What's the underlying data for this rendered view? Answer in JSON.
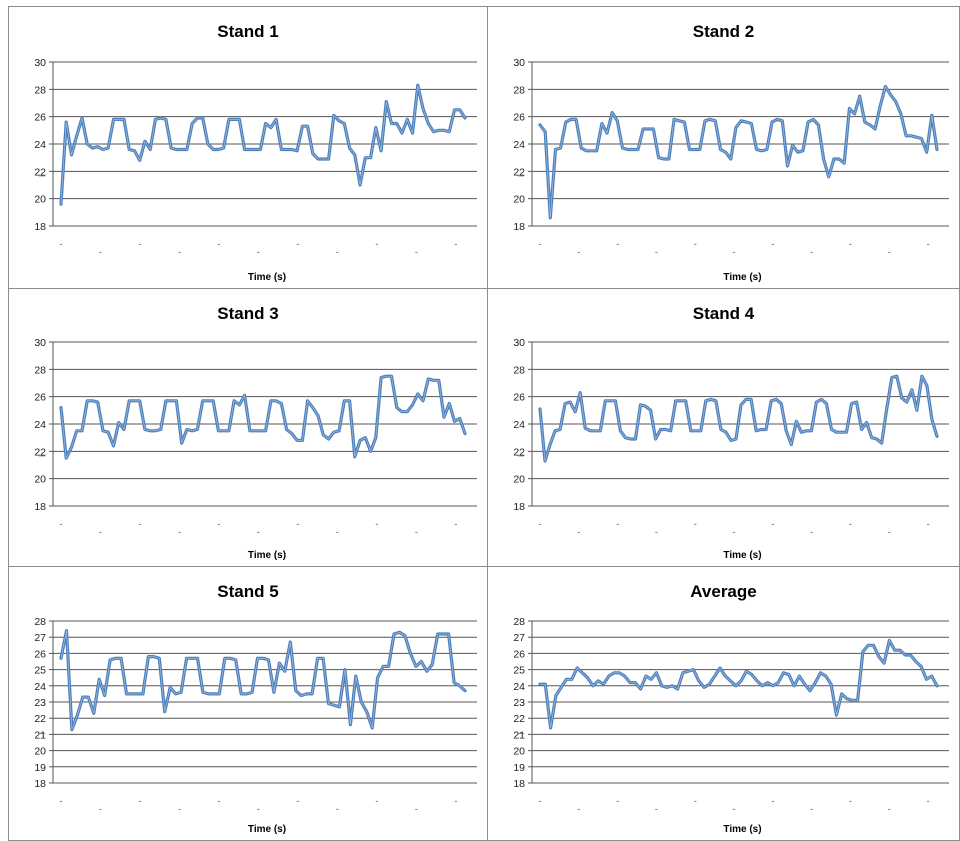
{
  "chart_data": [
    {
      "type": "line",
      "title": "Stand 1",
      "xlabel": "Time (s)",
      "ylabel": "",
      "ylim": [
        18,
        30
      ],
      "yticks": [
        18,
        20,
        22,
        24,
        26,
        28,
        30
      ],
      "grid": true,
      "legend": "none",
      "series_color": "#4f81bd",
      "x_tick_labels": [
        "-",
        "-",
        "-",
        "-",
        "-",
        "-",
        "-",
        "-",
        "-",
        "-",
        "-",
        "-",
        "-",
        "-",
        "-",
        "-",
        "-",
        "-",
        "-",
        "-",
        "-",
        "-",
        "-",
        "-",
        "-",
        "-",
        "-",
        "-",
        "-",
        "-",
        "-",
        "-",
        "-",
        "-",
        "-",
        "-",
        "-",
        "-",
        "-",
        "-",
        "-",
        "-",
        "-",
        "-",
        "-",
        "-",
        "-",
        "-",
        "-",
        "-",
        "-",
        "-",
        "-",
        "-",
        "-",
        "-",
        "-",
        "-",
        "-",
        "-",
        "-",
        "-",
        "-"
      ],
      "series": [
        {
          "values": [
            19.6,
            25.6,
            23.2,
            24.6,
            25.9,
            24,
            23.7,
            23.8,
            23.6,
            23.7,
            25.8,
            25.8,
            25.8,
            23.6,
            23.5,
            22.8,
            24.2,
            23.6,
            25.8,
            25.9,
            25.8,
            23.7,
            23.6,
            23.6,
            23.6,
            25.5,
            25.9,
            25.9,
            24,
            23.6,
            23.6,
            23.7,
            25.8,
            25.8,
            25.8,
            23.6,
            23.6,
            23.6,
            23.6,
            25.5,
            25.2,
            25.8,
            23.6,
            23.6,
            23.6,
            23.5,
            25.3,
            25.3,
            23.3,
            22.9,
            22.9,
            22.9,
            26.1,
            25.7,
            25.5,
            23.7,
            23.2,
            21,
            23,
            23,
            25.2,
            23.5,
            27.1,
            25.5,
            25.5,
            24.8,
            25.8,
            24.8,
            28.3,
            26.6,
            25.5,
            24.9,
            25,
            25,
            24.9,
            26.5,
            26.5,
            25.9
          ]
        }
      ]
    },
    {
      "type": "line",
      "title": "Stand 2",
      "xlabel": "Time (s)",
      "ylabel": "",
      "ylim": [
        18,
        30
      ],
      "yticks": [
        18,
        20,
        22,
        24,
        26,
        28,
        30
      ],
      "grid": true,
      "legend": "none",
      "series_color": "#4f81bd",
      "x_tick_labels": [
        "-",
        "-",
        "-",
        "-",
        "-",
        "-",
        "-",
        "-",
        "-",
        "-",
        "-",
        "-",
        "-",
        "-",
        "-",
        "-",
        "-",
        "-",
        "-",
        "-",
        "-",
        "-",
        "-",
        "-",
        "-",
        "-",
        "-",
        "-",
        "-",
        "-",
        "-",
        "-",
        "-",
        "-",
        "-",
        "-",
        "-",
        "-",
        "-",
        "-",
        "-",
        "-",
        "-",
        "-",
        "-",
        "-",
        "-",
        "-",
        "-",
        "-",
        "-",
        "-",
        "-",
        "-",
        "-",
        "-",
        "-",
        "-",
        "-",
        "-",
        "-",
        "-",
        "-"
      ],
      "series": [
        {
          "values": [
            25.4,
            24.9,
            18.6,
            23.6,
            23.7,
            25.6,
            25.8,
            25.8,
            23.7,
            23.5,
            23.5,
            23.5,
            25.5,
            24.8,
            26.3,
            25.7,
            23.7,
            23.6,
            23.6,
            23.6,
            25.1,
            25.1,
            25.1,
            23,
            22.9,
            22.9,
            25.8,
            25.7,
            25.6,
            23.6,
            23.6,
            23.6,
            25.7,
            25.8,
            25.7,
            23.6,
            23.4,
            22.9,
            25.2,
            25.7,
            25.6,
            25.5,
            23.6,
            23.5,
            23.6,
            25.6,
            25.8,
            25.7,
            22.4,
            23.9,
            23.4,
            23.5,
            25.6,
            25.8,
            25.4,
            22.9,
            21.6,
            22.9,
            22.9,
            22.6,
            26.6,
            26.2,
            27.5,
            25.6,
            25.4,
            25.1,
            26.8,
            28.2,
            27.6,
            27.1,
            26.2,
            24.6,
            24.6,
            24.5,
            24.4,
            23.4,
            26.1,
            23.6
          ]
        }
      ]
    },
    {
      "type": "line",
      "title": "Stand 3",
      "xlabel": "Time (s)",
      "ylabel": "",
      "ylim": [
        18,
        30
      ],
      "yticks": [
        18,
        20,
        22,
        24,
        26,
        28,
        30
      ],
      "grid": true,
      "legend": "none",
      "series_color": "#4f81bd",
      "x_tick_labels": [
        "-",
        "-",
        "-",
        "-",
        "-",
        "-",
        "-",
        "-",
        "-",
        "-",
        "-",
        "-",
        "-",
        "-",
        "-",
        "-",
        "-",
        "-",
        "-",
        "-",
        "-",
        "-",
        "-",
        "-",
        "-",
        "-",
        "-",
        "-",
        "-",
        "-",
        "-",
        "-",
        "-",
        "-",
        "-",
        "-",
        "-",
        "-",
        "-",
        "-",
        "-",
        "-",
        "-",
        "-",
        "-",
        "-",
        "-",
        "-",
        "-",
        "-",
        "-",
        "-",
        "-",
        "-",
        "-",
        "-",
        "-",
        "-",
        "-",
        "-",
        "-",
        "-",
        "-"
      ],
      "series": [
        {
          "values": [
            25.2,
            21.5,
            22.3,
            23.5,
            23.5,
            25.7,
            25.7,
            25.6,
            23.5,
            23.4,
            22.4,
            24.1,
            23.6,
            25.7,
            25.7,
            25.7,
            23.6,
            23.5,
            23.5,
            23.6,
            25.7,
            25.7,
            25.7,
            22.6,
            23.6,
            23.5,
            23.6,
            25.7,
            25.7,
            25.7,
            23.5,
            23.5,
            23.5,
            25.7,
            25.4,
            26.1,
            23.5,
            23.5,
            23.5,
            23.5,
            25.7,
            25.7,
            25.5,
            23.6,
            23.3,
            22.8,
            22.8,
            25.7,
            25.2,
            24.6,
            23.2,
            22.9,
            23.4,
            23.5,
            25.7,
            25.7,
            21.6,
            22.8,
            23,
            22,
            23,
            27.4,
            27.5,
            27.5,
            25.2,
            24.9,
            24.9,
            25.4,
            26.2,
            25.7,
            27.3,
            27.2,
            27.2,
            24.5,
            25.5,
            24.2,
            24.4,
            23.3
          ]
        }
      ]
    },
    {
      "type": "line",
      "title": "Stand 4",
      "xlabel": "Time (s)",
      "ylabel": "",
      "ylim": [
        18,
        30
      ],
      "yticks": [
        18,
        20,
        22,
        24,
        26,
        28,
        30
      ],
      "grid": true,
      "legend": "none",
      "series_color": "#4f81bd",
      "x_tick_labels": [
        "-",
        "-",
        "-",
        "-",
        "-",
        "-",
        "-",
        "-",
        "-",
        "-",
        "-",
        "-",
        "-",
        "-",
        "-",
        "-",
        "-",
        "-",
        "-",
        "-",
        "-",
        "-",
        "-",
        "-",
        "-",
        "-",
        "-",
        "-",
        "-",
        "-",
        "-",
        "-",
        "-",
        "-",
        "-",
        "-",
        "-",
        "-",
        "-",
        "-",
        "-",
        "-",
        "-",
        "-",
        "-",
        "-",
        "-",
        "-",
        "-",
        "-",
        "-",
        "-",
        "-",
        "-",
        "-",
        "-",
        "-",
        "-",
        "-",
        "-",
        "-",
        "-",
        "-"
      ],
      "series": [
        {
          "values": [
            25.1,
            21.3,
            22.5,
            23.5,
            23.6,
            25.5,
            25.6,
            24.9,
            26.3,
            23.7,
            23.5,
            23.5,
            23.5,
            25.7,
            25.7,
            25.7,
            23.5,
            23,
            22.9,
            22.9,
            25.4,
            25.3,
            25,
            22.9,
            23.6,
            23.6,
            23.5,
            25.7,
            25.7,
            25.7,
            23.5,
            23.5,
            23.5,
            25.7,
            25.8,
            25.7,
            23.6,
            23.4,
            22.8,
            22.9,
            25.4,
            25.8,
            25.8,
            23.5,
            23.6,
            23.6,
            25.7,
            25.8,
            25.5,
            23.5,
            22.5,
            24.2,
            23.4,
            23.5,
            23.5,
            25.6,
            25.8,
            25.5,
            23.6,
            23.4,
            23.4,
            23.4,
            25.5,
            25.6,
            23.6,
            24.1,
            23,
            22.9,
            22.6,
            25.1,
            27.4,
            27.5,
            25.9,
            25.6,
            26.5,
            25,
            27.5,
            26.8,
            24.3,
            23.1
          ]
        }
      ]
    },
    {
      "type": "line",
      "title": "Stand 5",
      "xlabel": "Time (s)",
      "ylabel": "",
      "ylim": [
        18,
        28
      ],
      "yticks": [
        18,
        19,
        20,
        21,
        22,
        23,
        24,
        25,
        26,
        27,
        28
      ],
      "grid": true,
      "legend": "none",
      "series_color": "#4f81bd",
      "x_tick_labels": [
        "-",
        "-",
        "-",
        "-",
        "-",
        "-",
        "-",
        "-",
        "-",
        "-",
        "-",
        "-",
        "-",
        "-",
        "-",
        "-",
        "-",
        "-",
        "-",
        "-",
        "-",
        "-",
        "-",
        "-",
        "-",
        "-",
        "-",
        "-",
        "-",
        "-",
        "-",
        "-",
        "-",
        "-",
        "-",
        "-",
        "-",
        "-",
        "-",
        "-",
        "-",
        "-",
        "-",
        "-",
        "-",
        "-",
        "-",
        "-",
        "-",
        "-",
        "-",
        "-",
        "-",
        "-",
        "-",
        "-",
        "-",
        "-",
        "-",
        "-",
        "-",
        "-",
        "-"
      ],
      "series": [
        {
          "values": [
            25.7,
            27.4,
            21.3,
            22.2,
            23.3,
            23.3,
            22.3,
            24.4,
            23.4,
            25.6,
            25.7,
            25.7,
            23.5,
            23.5,
            23.5,
            23.5,
            25.8,
            25.8,
            25.7,
            22.4,
            23.9,
            23.5,
            23.6,
            25.7,
            25.7,
            25.7,
            23.6,
            23.5,
            23.5,
            23.5,
            25.7,
            25.7,
            25.6,
            23.5,
            23.5,
            23.6,
            25.7,
            25.7,
            25.6,
            23.6,
            25.4,
            24.9,
            26.7,
            23.7,
            23.4,
            23.5,
            23.5,
            25.7,
            25.7,
            22.9,
            22.8,
            22.7,
            25,
            21.6,
            24.6,
            23,
            22.4,
            21.4,
            24.5,
            25.2,
            25.2,
            27.2,
            27.3,
            27.1,
            26,
            25.2,
            25.5,
            24.9,
            25.3,
            27.2,
            27.2,
            27.2,
            24.2,
            24,
            23.7
          ]
        }
      ]
    },
    {
      "type": "line",
      "title": "Average",
      "xlabel": "Time (s)",
      "ylabel": "",
      "ylim": [
        18,
        28
      ],
      "yticks": [
        18,
        19,
        20,
        21,
        22,
        23,
        24,
        25,
        26,
        27,
        28
      ],
      "grid": true,
      "legend": "none",
      "series_color": "#4f81bd",
      "x_tick_labels": [
        "-",
        "-",
        "-",
        "-",
        "-",
        "-",
        "-",
        "-",
        "-",
        "-",
        "-",
        "-",
        "-",
        "-",
        "-",
        "-",
        "-",
        "-",
        "-",
        "-",
        "-",
        "-",
        "-",
        "-",
        "-",
        "-",
        "-",
        "-",
        "-",
        "-",
        "-",
        "-",
        "-",
        "-",
        "-",
        "-",
        "-",
        "-",
        "-",
        "-",
        "-",
        "-",
        "-",
        "-",
        "-",
        "-",
        "-",
        "-",
        "-",
        "-",
        "-",
        "-",
        "-",
        "-",
        "-",
        "-",
        "-",
        "-",
        "-",
        "-",
        "-",
        "-",
        "-"
      ],
      "series": [
        {
          "values": [
            24.1,
            24.1,
            21.4,
            23.4,
            23.9,
            24.4,
            24.4,
            25.1,
            24.8,
            24.5,
            24,
            24.3,
            24.1,
            24.6,
            24.8,
            24.8,
            24.6,
            24.2,
            24.2,
            23.8,
            24.6,
            24.4,
            24.8,
            24,
            23.9,
            24,
            23.8,
            24.8,
            24.9,
            25,
            24.3,
            23.9,
            24.1,
            24.6,
            25.1,
            24.6,
            24.3,
            24,
            24.3,
            24.9,
            24.7,
            24.3,
            24,
            24.2,
            24,
            24.2,
            24.8,
            24.7,
            24,
            24.6,
            24.1,
            23.7,
            24.2,
            24.8,
            24.6,
            24.1,
            22.2,
            23.5,
            23.2,
            23.1,
            23.1,
            26.1,
            26.5,
            26.5,
            25.8,
            25.4,
            26.8,
            26.2,
            26.2,
            25.9,
            25.9,
            25.5,
            25.2,
            24.4,
            24.6,
            24
          ]
        }
      ]
    }
  ]
}
